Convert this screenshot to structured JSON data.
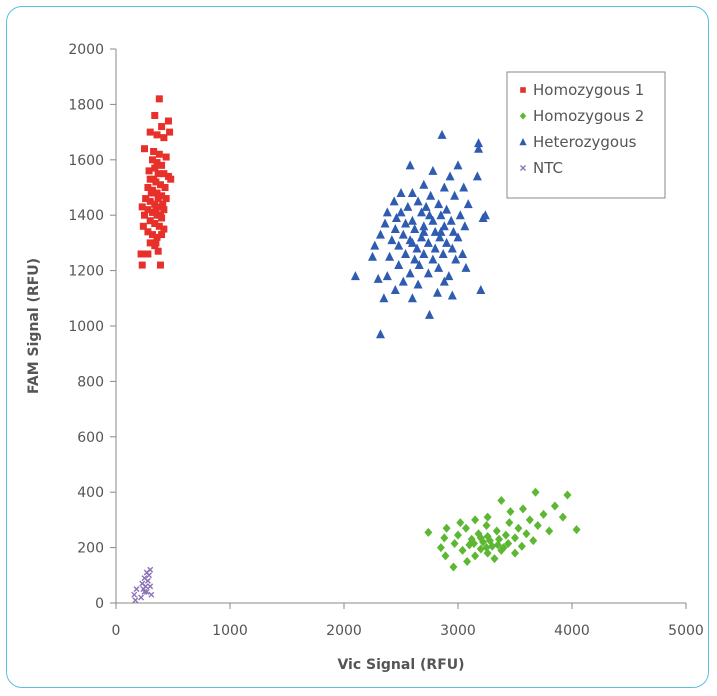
{
  "chart_data": {
    "type": "scatter",
    "title": "",
    "xlabel": "Vic Signal (RFU)",
    "ylabel": "FAM Signal (RFU)",
    "xlim": [
      0,
      5000
    ],
    "ylim": [
      0,
      2000
    ],
    "x_ticks": [
      0,
      1000,
      2000,
      3000,
      4000,
      5000
    ],
    "y_ticks": [
      0,
      200,
      400,
      600,
      800,
      1000,
      1200,
      1400,
      1600,
      1800,
      2000
    ],
    "grid": false,
    "legend_position": "top-right",
    "series": [
      {
        "name": "Homozygous 1",
        "marker": "square",
        "color": "#e8302b",
        "points": [
          [
            380,
            1820
          ],
          [
            340,
            1760
          ],
          [
            400,
            1720
          ],
          [
            460,
            1740
          ],
          [
            300,
            1700
          ],
          [
            360,
            1690
          ],
          [
            420,
            1680
          ],
          [
            470,
            1700
          ],
          [
            250,
            1640
          ],
          [
            330,
            1630
          ],
          [
            380,
            1620
          ],
          [
            440,
            1610
          ],
          [
            320,
            1600
          ],
          [
            360,
            1590
          ],
          [
            400,
            1580
          ],
          [
            340,
            1570
          ],
          [
            290,
            1560
          ],
          [
            370,
            1550
          ],
          [
            420,
            1550
          ],
          [
            460,
            1540
          ],
          [
            300,
            1530
          ],
          [
            350,
            1520
          ],
          [
            390,
            1510
          ],
          [
            430,
            1500
          ],
          [
            480,
            1530
          ],
          [
            280,
            1500
          ],
          [
            320,
            1490
          ],
          [
            360,
            1480
          ],
          [
            400,
            1470
          ],
          [
            440,
            1460
          ],
          [
            260,
            1460
          ],
          [
            300,
            1450
          ],
          [
            340,
            1440
          ],
          [
            380,
            1430
          ],
          [
            420,
            1420
          ],
          [
            230,
            1430
          ],
          [
            280,
            1420
          ],
          [
            320,
            1410
          ],
          [
            360,
            1400
          ],
          [
            400,
            1390
          ],
          [
            250,
            1400
          ],
          [
            300,
            1380
          ],
          [
            340,
            1370
          ],
          [
            380,
            1360
          ],
          [
            420,
            1350
          ],
          [
            240,
            1360
          ],
          [
            280,
            1340
          ],
          [
            320,
            1330
          ],
          [
            360,
            1320
          ],
          [
            400,
            1330
          ],
          [
            300,
            1300
          ],
          [
            340,
            1290
          ],
          [
            280,
            1260
          ],
          [
            370,
            1270
          ],
          [
            220,
            1260
          ],
          [
            230,
            1220
          ],
          [
            390,
            1220
          ],
          [
            350,
            1300
          ],
          [
            310,
            1480
          ],
          [
            330,
            1530
          ],
          [
            370,
            1460
          ],
          [
            390,
            1400
          ],
          [
            350,
            1420
          ],
          [
            410,
            1440
          ]
        ]
      },
      {
        "name": "Homozygous 2",
        "marker": "diamond",
        "color": "#5cb832",
        "points": [
          [
            3680,
            400
          ],
          [
            3960,
            390
          ],
          [
            3380,
            370
          ],
          [
            3850,
            350
          ],
          [
            3570,
            340
          ],
          [
            3750,
            320
          ],
          [
            3460,
            330
          ],
          [
            3260,
            310
          ],
          [
            3920,
            310
          ],
          [
            3630,
            300
          ],
          [
            3150,
            300
          ],
          [
            3020,
            290
          ],
          [
            3450,
            290
          ],
          [
            3250,
            280
          ],
          [
            3700,
            280
          ],
          [
            3070,
            270
          ],
          [
            3530,
            270
          ],
          [
            2900,
            270
          ],
          [
            3800,
            260
          ],
          [
            4040,
            265
          ],
          [
            3340,
            260
          ],
          [
            3180,
            250
          ],
          [
            3600,
            250
          ],
          [
            2740,
            255
          ],
          [
            3000,
            245
          ],
          [
            3420,
            245
          ],
          [
            3260,
            240
          ],
          [
            3500,
            235
          ],
          [
            2880,
            235
          ],
          [
            3120,
            230
          ],
          [
            3360,
            230
          ],
          [
            3660,
            225
          ],
          [
            3220,
            220
          ],
          [
            3440,
            215
          ],
          [
            2970,
            215
          ],
          [
            3100,
            210
          ],
          [
            3300,
            205
          ],
          [
            3560,
            205
          ],
          [
            2850,
            200
          ],
          [
            3200,
            195
          ],
          [
            3380,
            190
          ],
          [
            3040,
            190
          ],
          [
            3260,
            180
          ],
          [
            3500,
            180
          ],
          [
            3150,
            170
          ],
          [
            2890,
            170
          ],
          [
            3320,
            160
          ],
          [
            3080,
            150
          ],
          [
            2960,
            130
          ],
          [
            3280,
            225
          ],
          [
            3350,
            210
          ],
          [
            3200,
            235
          ],
          [
            3140,
            215
          ],
          [
            3400,
            200
          ],
          [
            3250,
            200
          ]
        ]
      },
      {
        "name": "Heterozygous",
        "marker": "triangle",
        "color": "#2f5cb0",
        "points": [
          [
            2860,
            1690
          ],
          [
            3180,
            1660
          ],
          [
            2580,
            1580
          ],
          [
            3000,
            1580
          ],
          [
            2780,
            1560
          ],
          [
            3170,
            1540
          ],
          [
            2930,
            1540
          ],
          [
            2700,
            1510
          ],
          [
            2880,
            1500
          ],
          [
            3050,
            1500
          ],
          [
            2500,
            1480
          ],
          [
            2600,
            1480
          ],
          [
            2760,
            1470
          ],
          [
            2970,
            1470
          ],
          [
            2440,
            1450
          ],
          [
            2650,
            1450
          ],
          [
            2830,
            1440
          ],
          [
            3090,
            1440
          ],
          [
            2560,
            1430
          ],
          [
            2720,
            1430
          ],
          [
            2900,
            1420
          ],
          [
            2380,
            1410
          ],
          [
            2500,
            1410
          ],
          [
            2680,
            1410
          ],
          [
            2850,
            1400
          ],
          [
            3020,
            1400
          ],
          [
            3220,
            1390
          ],
          [
            2460,
            1390
          ],
          [
            2600,
            1380
          ],
          [
            2780,
            1380
          ],
          [
            2940,
            1380
          ],
          [
            2360,
            1370
          ],
          [
            2540,
            1370
          ],
          [
            2700,
            1360
          ],
          [
            2880,
            1360
          ],
          [
            3060,
            1360
          ],
          [
            2450,
            1350
          ],
          [
            2620,
            1350
          ],
          [
            2800,
            1340
          ],
          [
            2960,
            1340
          ],
          [
            2320,
            1330
          ],
          [
            2520,
            1330
          ],
          [
            2680,
            1320
          ],
          [
            2840,
            1320
          ],
          [
            3000,
            1320
          ],
          [
            2420,
            1310
          ],
          [
            2580,
            1310
          ],
          [
            2740,
            1300
          ],
          [
            2900,
            1300
          ],
          [
            2270,
            1290
          ],
          [
            2480,
            1290
          ],
          [
            2640,
            1280
          ],
          [
            2800,
            1280
          ],
          [
            2950,
            1280
          ],
          [
            2540,
            1260
          ],
          [
            2700,
            1260
          ],
          [
            2870,
            1260
          ],
          [
            3040,
            1260
          ],
          [
            2250,
            1250
          ],
          [
            2400,
            1250
          ],
          [
            2620,
            1240
          ],
          [
            2780,
            1240
          ],
          [
            2980,
            1240
          ],
          [
            2480,
            1220
          ],
          [
            2660,
            1220
          ],
          [
            2830,
            1210
          ],
          [
            3070,
            1210
          ],
          [
            2100,
            1180
          ],
          [
            2380,
            1180
          ],
          [
            2580,
            1190
          ],
          [
            2740,
            1190
          ],
          [
            2920,
            1180
          ],
          [
            2300,
            1170
          ],
          [
            2520,
            1160
          ],
          [
            2880,
            1160
          ],
          [
            2650,
            1150
          ],
          [
            2450,
            1130
          ],
          [
            3200,
            1130
          ],
          [
            2820,
            1120
          ],
          [
            2350,
            1100
          ],
          [
            2600,
            1100
          ],
          [
            2950,
            1110
          ],
          [
            2750,
            1040
          ],
          [
            2320,
            970
          ],
          [
            3180,
            1640
          ],
          [
            3240,
            1400
          ],
          [
            2600,
            1300
          ],
          [
            2750,
            1400
          ],
          [
            2700,
            1340
          ],
          [
            2850,
            1340
          ]
        ]
      },
      {
        "name": "NTC",
        "marker": "cross",
        "color": "#8b72b5",
        "points": [
          [
            300,
            120
          ],
          [
            270,
            110
          ],
          [
            250,
            90
          ],
          [
            280,
            80
          ],
          [
            230,
            70
          ],
          [
            260,
            60
          ],
          [
            300,
            60
          ],
          [
            180,
            50
          ],
          [
            240,
            50
          ],
          [
            270,
            40
          ],
          [
            310,
            30
          ],
          [
            160,
            30
          ],
          [
            220,
            20
          ],
          [
            170,
            10
          ],
          [
            250,
            40
          ],
          [
            290,
            100
          ]
        ]
      }
    ]
  }
}
